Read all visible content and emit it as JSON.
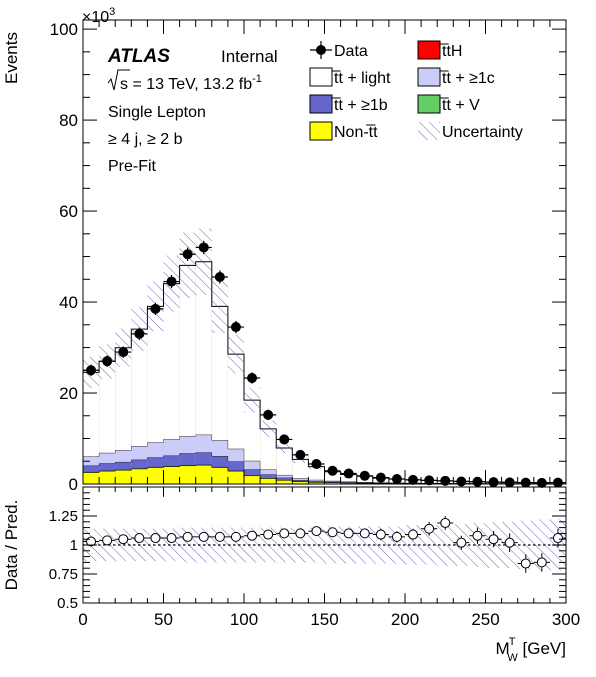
{
  "chart_data": {
    "type": "bar",
    "stacked_histogram": true,
    "experiment": "ATLAS",
    "status": "Internal",
    "energy_prefix": "s",
    "energy_text": " = 13 TeV, 13.2 fb",
    "lumi_exp": "-1",
    "selection_lines": [
      "Single Lepton",
      "≥ 4 j, ≥ 2 b",
      "Pre-Fit"
    ],
    "bin_width": 10,
    "bin_edges_start": 0,
    "bin_centers": [
      5,
      15,
      25,
      35,
      45,
      55,
      65,
      75,
      85,
      95,
      105,
      115,
      125,
      135,
      145,
      155,
      165,
      175,
      185,
      195,
      205,
      215,
      225,
      235,
      245,
      255,
      265,
      275,
      285,
      295
    ],
    "main": {
      "ylabel": "Events",
      "exponent_base": "×10",
      "exponent_power": "3",
      "ylim": [
        0,
        102
      ],
      "yticks": [
        0,
        20,
        40,
        60,
        80,
        100
      ],
      "yticks_labels": [
        "0",
        "20",
        "40",
        "60",
        "80",
        "100"
      ]
    },
    "ratio": {
      "ylabel": "Data / Pred.",
      "ylim": [
        0.5,
        1.5
      ],
      "yticks": [
        0.5,
        0.75,
        1,
        1.25
      ],
      "yticks_labels": [
        "0.5",
        "0.75",
        "1",
        "1.25"
      ],
      "reference": 1
    },
    "xaxis": {
      "label_main": "M",
      "label_sup": "T",
      "label_sub": "W",
      "label_unit": " [GeV]",
      "xlim": [
        0,
        300
      ],
      "xticks": [
        0,
        50,
        100,
        150,
        200,
        250,
        300
      ],
      "xticks_labels": [
        "0",
        "50",
        "100",
        "150",
        "200",
        "250",
        "300"
      ]
    },
    "legend": {
      "placement": "top-right",
      "entries": [
        {
          "key": "data",
          "label": "Data",
          "style": "marker"
        },
        {
          "key": "ttH",
          "label": "t̅tH",
          "style": "fill",
          "color": "#ff0000"
        },
        {
          "key": "ttlight",
          "label": "t̅t + light",
          "style": "fill",
          "color": "#ffffff"
        },
        {
          "key": "ttc",
          "label": "t̅t + ≥1c",
          "style": "fill",
          "color": "#ccccf9"
        },
        {
          "key": "ttb",
          "label": "t̅t + ≥1b",
          "style": "fill",
          "color": "#6666cc"
        },
        {
          "key": "ttV",
          "label": "t̅t + V",
          "style": "fill",
          "color": "#66cc66"
        },
        {
          "key": "nontt",
          "label": "Non-t̅t",
          "style": "fill",
          "color": "#ffff00"
        },
        {
          "key": "unc",
          "label": "Uncertainty",
          "style": "hatch",
          "color": "#5555bb"
        }
      ]
    },
    "series": [
      {
        "key": "nontt",
        "name": "Non-t̅t",
        "color": "#ffff00",
        "values": [
          2.5,
          2.8,
          3.0,
          3.3,
          3.6,
          3.8,
          4.0,
          4.1,
          3.6,
          2.8,
          1.8,
          1.2,
          0.8,
          0.5,
          0.35,
          0.28,
          0.22,
          0.18,
          0.15,
          0.12,
          0.1,
          0.09,
          0.08,
          0.07,
          0.06,
          0.05,
          0.05,
          0.04,
          0.04,
          0.03
        ]
      },
      {
        "key": "ttV",
        "name": "t̅t + V",
        "color": "#66cc66",
        "values": [
          0.1,
          0.1,
          0.1,
          0.1,
          0.1,
          0.1,
          0.1,
          0.1,
          0.1,
          0.1,
          0.05,
          0.05,
          0.04,
          0.03,
          0.02,
          0.02,
          0.02,
          0.01,
          0.01,
          0.01,
          0.01,
          0.01,
          0.01,
          0.01,
          0.01,
          0.01,
          0.01,
          0.01,
          0.01,
          0.01
        ]
      },
      {
        "key": "ttb",
        "name": "t̅t + ≥1b",
        "color": "#6666cc",
        "values": [
          1.4,
          1.6,
          1.7,
          1.9,
          2.1,
          2.3,
          2.6,
          2.7,
          2.4,
          2.0,
          1.3,
          0.8,
          0.5,
          0.3,
          0.2,
          0.15,
          0.1,
          0.08,
          0.06,
          0.05,
          0.04,
          0.03,
          0.03,
          0.02,
          0.02,
          0.02,
          0.02,
          0.01,
          0.01,
          0.01
        ]
      },
      {
        "key": "ttc",
        "name": "t̅t + ≥1c",
        "color": "#ccccf9",
        "values": [
          2.0,
          2.3,
          2.6,
          3.0,
          3.3,
          3.6,
          3.8,
          3.9,
          3.5,
          2.8,
          1.9,
          1.1,
          0.6,
          0.4,
          0.3,
          0.2,
          0.15,
          0.1,
          0.08,
          0.06,
          0.05,
          0.04,
          0.04,
          0.03,
          0.03,
          0.02,
          0.02,
          0.02,
          0.02,
          0.02
        ]
      },
      {
        "key": "ttlight",
        "name": "t̅t + light",
        "color": "#ffffff",
        "values": [
          18.5,
          20.1,
          22.5,
          25.7,
          29.9,
          34.2,
          37.5,
          38.0,
          29.4,
          20.8,
          13.35,
          8.95,
          5.96,
          4.17,
          2.93,
          2.05,
          1.61,
          1.33,
          1.0,
          0.86,
          0.7,
          0.59,
          0.54,
          0.47,
          0.38,
          0.3,
          0.3,
          0.22,
          0.22,
          0.23
        ]
      },
      {
        "key": "ttH",
        "name": "t̅tH",
        "color": "#ff0000",
        "values": [
          0.05,
          0.05,
          0.05,
          0.05,
          0.05,
          0.05,
          0.05,
          0.05,
          0.05,
          0.05,
          0.03,
          0.02,
          0.02,
          0.01,
          0.01,
          0,
          0,
          0,
          0,
          0,
          0,
          0,
          0,
          0,
          0,
          0,
          0,
          0,
          0,
          0
        ]
      }
    ],
    "total_uncertainty_fraction": [
      0.14,
      0.14,
      0.14,
      0.14,
      0.14,
      0.14,
      0.15,
      0.15,
      0.15,
      0.15,
      0.15,
      0.15,
      0.15,
      0.15,
      0.15,
      0.16,
      0.16,
      0.16,
      0.16,
      0.16,
      0.17,
      0.17,
      0.18,
      0.18,
      0.19,
      0.2,
      0.2,
      0.21,
      0.22,
      0.22
    ],
    "data": {
      "values": [
        25.0,
        27.0,
        29.0,
        33.0,
        38.5,
        44.5,
        50.5,
        52.0,
        45.5,
        34.5,
        23.3,
        15.2,
        9.8,
        6.4,
        4.4,
        2.9,
        2.3,
        1.8,
        1.4,
        1.1,
        0.9,
        0.8,
        0.7,
        0.55,
        0.5,
        0.4,
        0.35,
        0.3,
        0.25,
        0.3
      ],
      "errors": [
        0.6,
        0.6,
        0.6,
        0.7,
        0.7,
        0.8,
        0.8,
        0.8,
        0.8,
        0.7,
        0.6,
        0.5,
        0.4,
        0.3,
        0.3,
        0.2,
        0.2,
        0.2,
        0.2,
        0.15,
        0.15,
        0.12,
        0.12,
        0.1,
        0.1,
        0.1,
        0.1,
        0.08,
        0.08,
        0.08
      ]
    },
    "ratio_points": {
      "values": [
        1.03,
        1.04,
        1.05,
        1.06,
        1.06,
        1.06,
        1.07,
        1.07,
        1.07,
        1.07,
        1.08,
        1.09,
        1.1,
        1.1,
        1.12,
        1.11,
        1.1,
        1.1,
        1.09,
        1.07,
        1.09,
        1.14,
        1.19,
        1.02,
        1.08,
        1.05,
        1.02,
        0.84,
        0.85,
        1.06
      ],
      "errors": [
        0.02,
        0.02,
        0.02,
        0.02,
        0.02,
        0.02,
        0.02,
        0.02,
        0.02,
        0.02,
        0.02,
        0.03,
        0.03,
        0.03,
        0.03,
        0.04,
        0.04,
        0.04,
        0.05,
        0.05,
        0.05,
        0.06,
        0.06,
        0.06,
        0.07,
        0.07,
        0.08,
        0.08,
        0.08,
        0.08
      ]
    },
    "ratio_uncertainty_fraction": [
      0.14,
      0.14,
      0.14,
      0.14,
      0.14,
      0.14,
      0.15,
      0.15,
      0.15,
      0.15,
      0.15,
      0.15,
      0.15,
      0.15,
      0.15,
      0.16,
      0.16,
      0.16,
      0.16,
      0.16,
      0.17,
      0.17,
      0.18,
      0.18,
      0.19,
      0.2,
      0.2,
      0.21,
      0.22,
      0.22
    ]
  }
}
